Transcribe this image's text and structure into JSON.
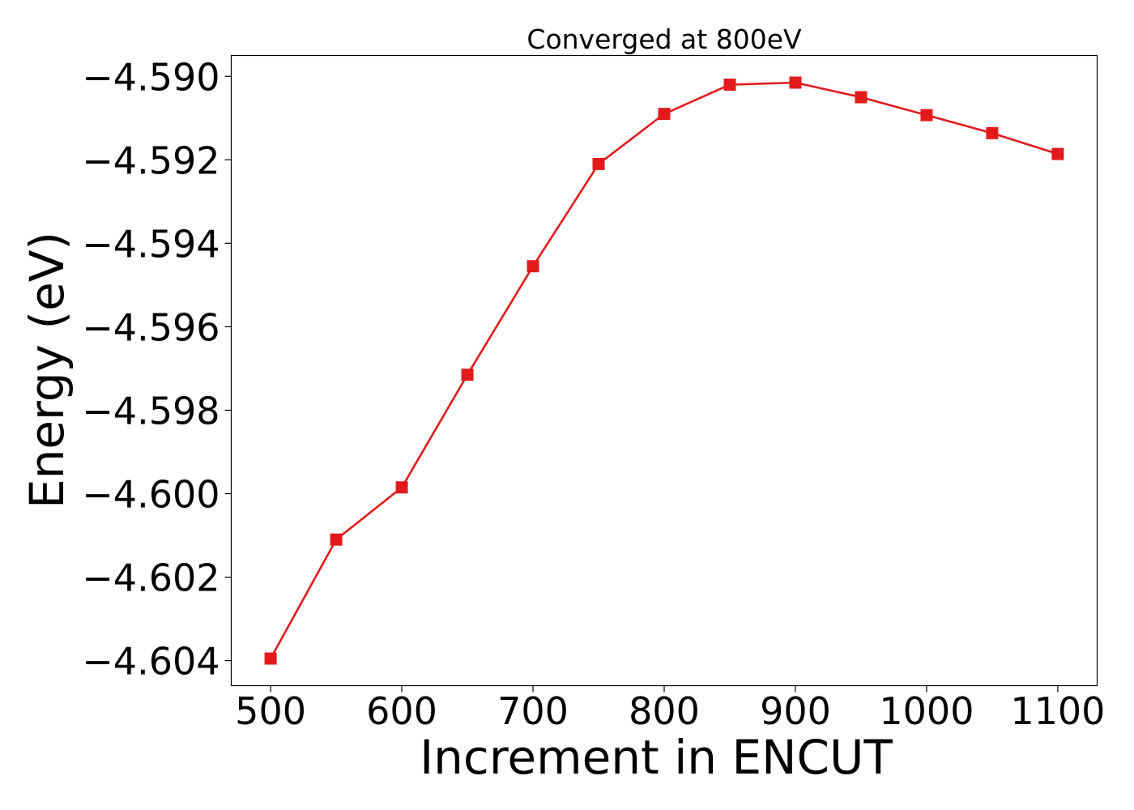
{
  "chart_data": {
    "type": "line",
    "title": "Converged at 800eV",
    "xlabel": "Increment in ENCUT",
    "ylabel": "Energy (eV)",
    "xlim": [
      470,
      1130
    ],
    "ylim": [
      -4.6046,
      -4.5895
    ],
    "xticks": [
      500,
      600,
      700,
      800,
      900,
      1000,
      1100
    ],
    "xtick_labels": [
      "500",
      "600",
      "700",
      "800",
      "900",
      "1000",
      "1100"
    ],
    "yticks": [
      -4.59,
      -4.592,
      -4.594,
      -4.596,
      -4.598,
      -4.6,
      -4.602,
      -4.604
    ],
    "ytick_labels": [
      "−4.590",
      "−4.592",
      "−4.594",
      "−4.596",
      "−4.598",
      "−4.600",
      "−4.602",
      "−4.604"
    ],
    "grid": false,
    "series": [
      {
        "color": "#e31a1c",
        "marker": "square",
        "x": [
          500,
          550,
          600,
          650,
          700,
          750,
          800,
          850,
          900,
          950,
          1000,
          1050,
          1100
        ],
        "y": [
          -4.60395,
          -4.6011,
          -4.59985,
          -4.59715,
          -4.59455,
          -4.5921,
          -4.5909,
          -4.5902,
          -4.59015,
          -4.5905,
          -4.59093,
          -4.59136,
          -4.59186
        ]
      }
    ]
  }
}
